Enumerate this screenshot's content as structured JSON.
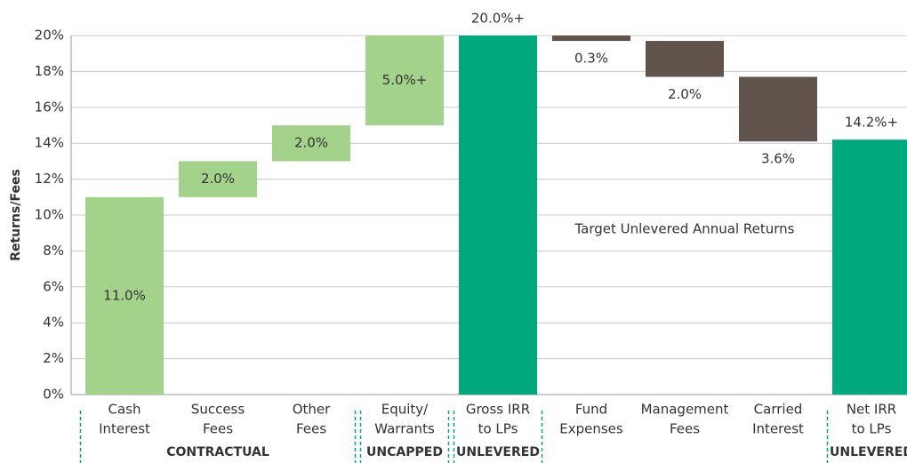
{
  "chart_data": {
    "type": "waterfall",
    "y_label": "Returns/Fees",
    "annotation": "Target Unlevered Annual Returns",
    "categories": [
      [
        "Cash",
        "Interest"
      ],
      [
        "Success",
        "Fees"
      ],
      [
        "Other",
        "Fees"
      ],
      [
        "Equity/",
        "Warrants"
      ],
      [
        "Gross IRR",
        "to LPs"
      ],
      [
        "Fund",
        "Expenses"
      ],
      [
        "Management",
        "Fees"
      ],
      [
        "Carried",
        "Interest"
      ],
      [
        "Net IRR",
        "to LPs"
      ]
    ],
    "values": [
      11,
      2,
      2,
      5,
      20,
      0.3,
      2,
      3.6,
      14.2
    ],
    "value_labels": [
      "11.0%",
      "2.0%",
      "2.0%",
      "5.0%+",
      "20.0%+",
      "0.3%",
      "2.0%",
      "3.6%",
      "14.2%+"
    ],
    "measure": [
      "increase",
      "increase",
      "increase",
      "increase",
      "total",
      "decrease",
      "decrease",
      "decrease",
      "total"
    ],
    "colors": {
      "increase": "#a3d28a",
      "total": "#00a87e",
      "decrease": "#5f534c"
    },
    "groups": [
      {
        "label": "CONTRACTUAL",
        "start": 0,
        "end": 2
      },
      {
        "label": "UNCAPPED",
        "start": 3,
        "end": 3
      },
      {
        "label": "UNLEVERED",
        "start": 4,
        "end": 4
      },
      {
        "label": "UNLEVERED",
        "start": 8,
        "end": 8
      }
    ],
    "ylim": [
      0,
      20
    ],
    "yticks": [
      {
        "value": 0,
        "label": "0%"
      },
      {
        "value": 2,
        "label": "2%"
      },
      {
        "value": 4,
        "label": "4%"
      },
      {
        "value": 6,
        "label": "6%"
      },
      {
        "value": 8,
        "label": "8%"
      },
      {
        "value": 10,
        "label": "10%"
      },
      {
        "value": 12,
        "label": "12%"
      },
      {
        "value": 14,
        "label": "14%"
      },
      {
        "value": 16,
        "label": "16%"
      },
      {
        "value": 18,
        "label": "18%"
      },
      {
        "value": 20,
        "label": "20%"
      }
    ],
    "grid": true
  }
}
